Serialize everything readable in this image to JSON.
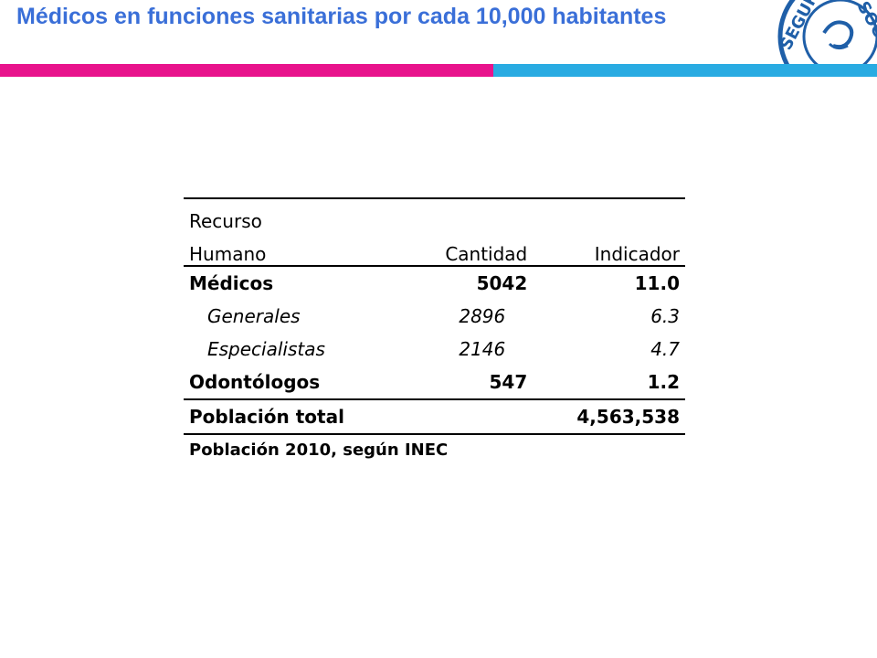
{
  "slide": {
    "title": "Médicos en funciones sanitarias por cada 10,000 habitantes",
    "colors": {
      "title": "#3a6fd8",
      "bar_pink": "#e8138c",
      "bar_blue": "#29abe2",
      "logo": "#1f5fa8"
    },
    "logo_text": "SEGURO SOCIAL"
  },
  "table": {
    "header": {
      "col1_line1": "Recurso",
      "col1_line2": "Humano",
      "col2": "Cantidad",
      "col3": "Indicador"
    },
    "rows": [
      {
        "label": "Médicos",
        "cantidad": "5042",
        "indicador": "11.0"
      },
      {
        "label": "Generales",
        "cantidad": "2896",
        "indicador": "6.3"
      },
      {
        "label": "Especialistas",
        "cantidad": "2146",
        "indicador": "4.7"
      },
      {
        "label": "Odontólogos",
        "cantidad": "547",
        "indicador": "1.2"
      }
    ],
    "total": {
      "label": "Población total",
      "value": "4,563,538"
    },
    "note": "Población 2010, según INEC"
  }
}
